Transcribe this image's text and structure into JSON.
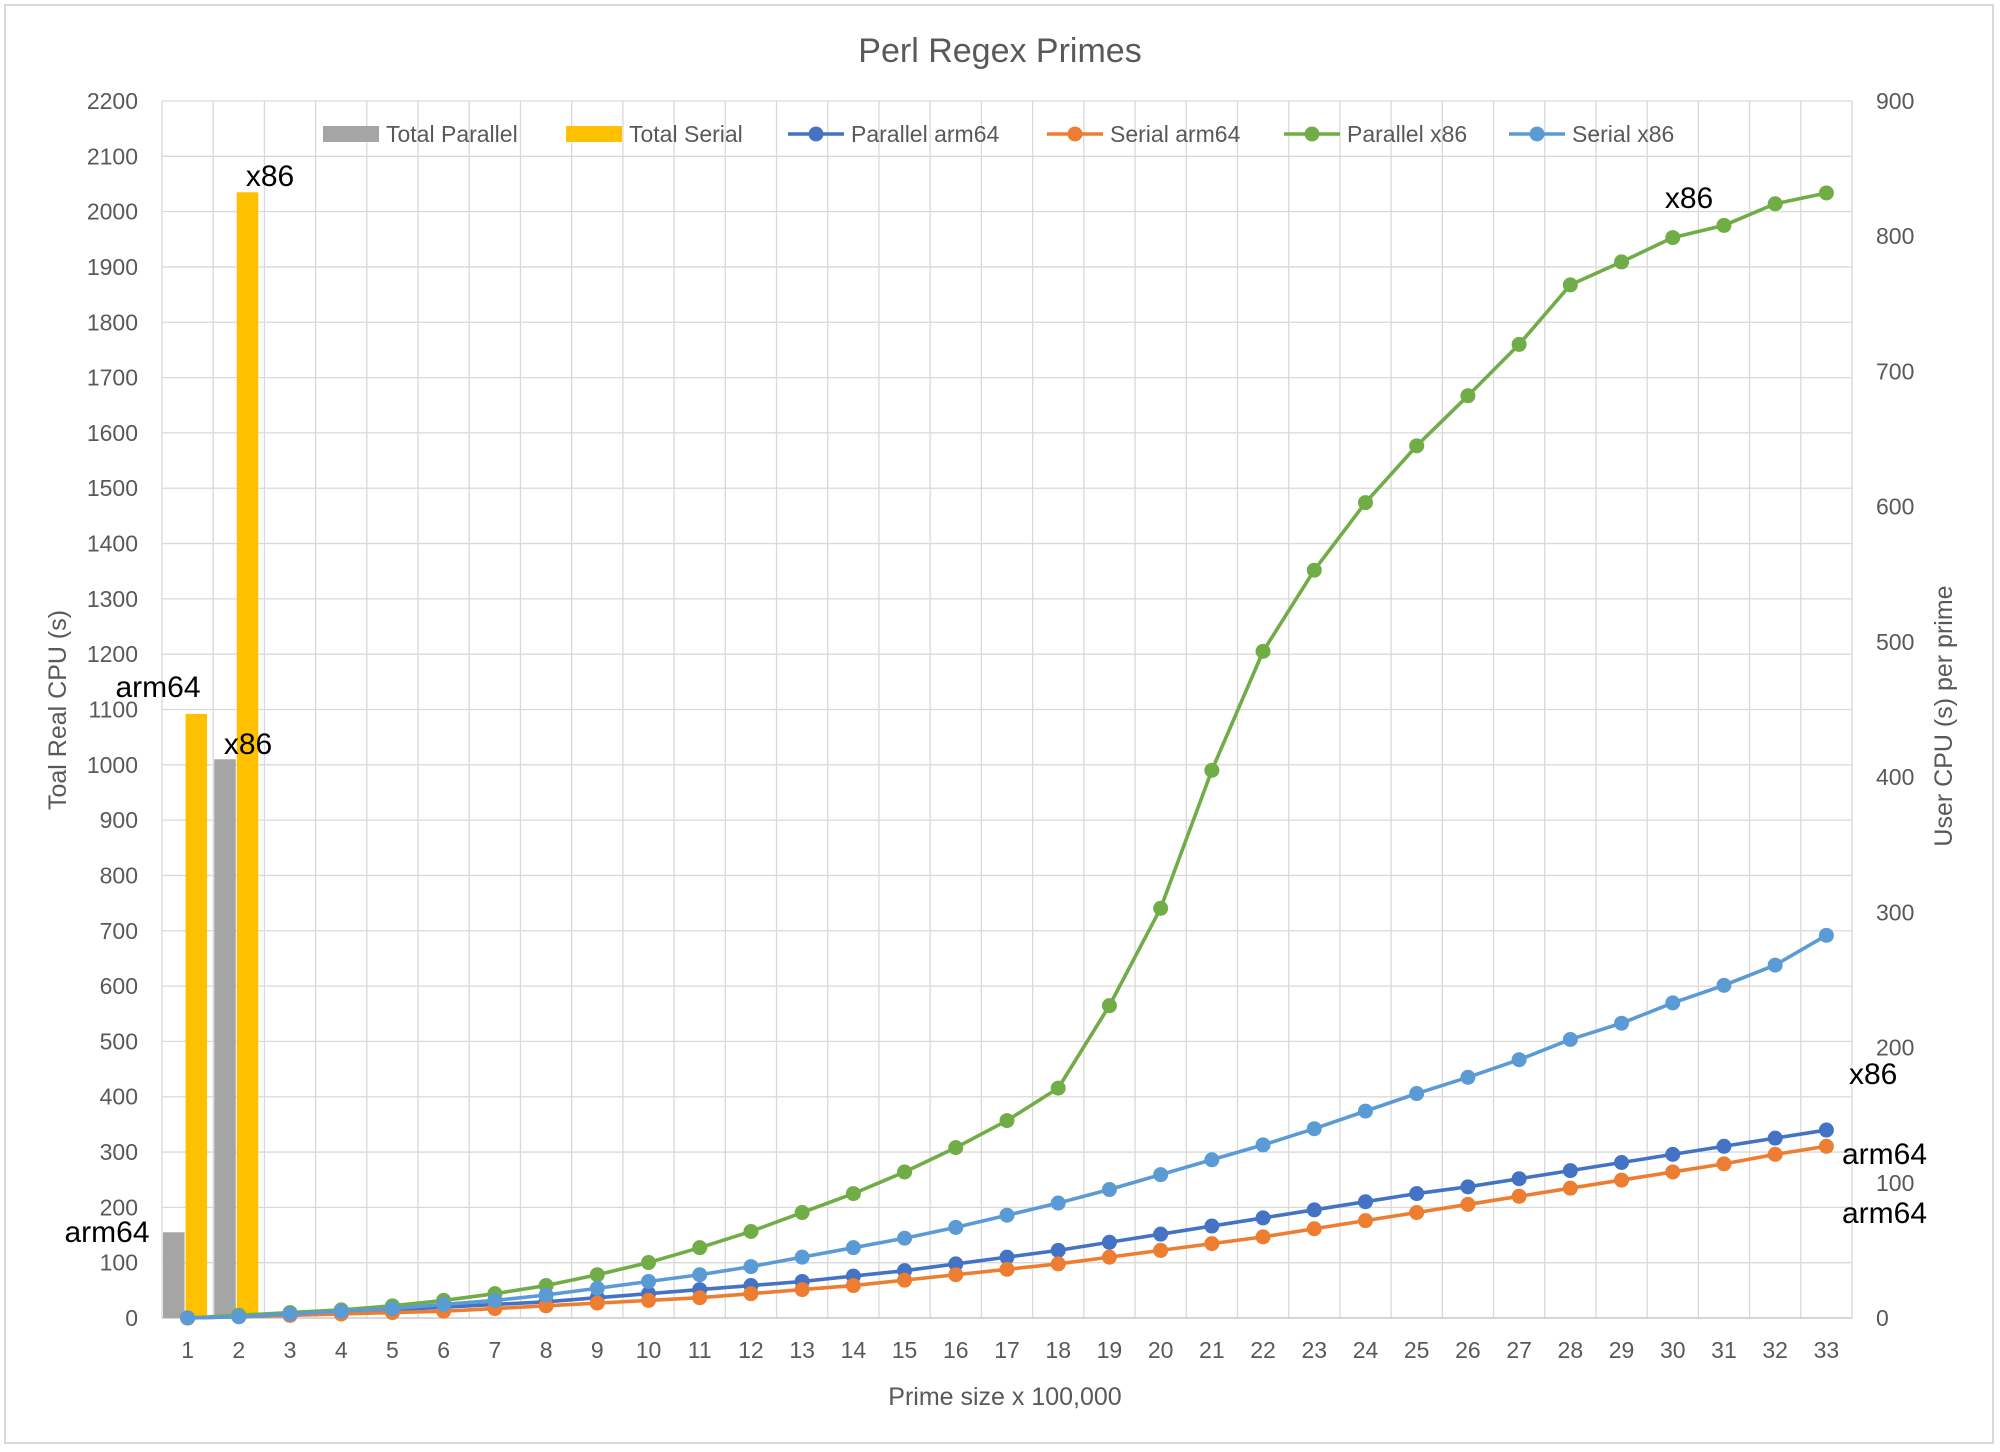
{
  "chart_data": {
    "type": "bar+line",
    "title": "Perl Regex Primes",
    "xlabel": "Prime size x 100,000",
    "ylabel_left": "Toal  Real  CPU  (s)",
    "ylabel_right": "User CPU (s) per prime",
    "categories": [
      "1",
      "2",
      "3",
      "4",
      "5",
      "6",
      "7",
      "8",
      "9",
      "10",
      "11",
      "12",
      "13",
      "14",
      "15",
      "16",
      "17",
      "18",
      "19",
      "20",
      "21",
      "22",
      "23",
      "24",
      "25",
      "26",
      "27",
      "28",
      "29",
      "30",
      "31",
      "32",
      "33"
    ],
    "ylim_left": [
      0,
      2200
    ],
    "yticks_left": [
      0,
      100,
      200,
      300,
      400,
      500,
      600,
      700,
      800,
      900,
      1000,
      1100,
      1200,
      1300,
      1400,
      1500,
      1600,
      1700,
      1800,
      1900,
      2000,
      2100,
      2200
    ],
    "ylim_right": [
      0,
      900
    ],
    "yticks_right": [
      0,
      100,
      200,
      300,
      400,
      500,
      600,
      700,
      800,
      900
    ],
    "grid": true,
    "legend_position": "top",
    "bar_series": [
      {
        "name": "Total Parallel",
        "color": "#a5a5a5",
        "values": [
          155,
          1010
        ]
      },
      {
        "name": "Total Serial",
        "color": "#ffc000",
        "values": [
          1092,
          2035
        ]
      }
    ],
    "line_series": [
      {
        "name": "Parallel arm64",
        "color": "#4472c4",
        "axis": "right",
        "values": [
          0,
          1,
          2,
          4,
          6,
          8,
          10,
          12,
          15,
          18,
          21,
          24,
          27,
          31,
          35,
          40,
          45,
          50,
          56,
          62,
          68,
          74,
          80,
          86,
          92,
          97,
          103,
          109,
          115,
          121,
          127,
          133,
          139
        ]
      },
      {
        "name": "Serial arm64",
        "color": "#ed7d31",
        "axis": "right",
        "values": [
          0,
          1,
          2,
          3,
          4,
          5,
          7,
          9,
          11,
          13,
          15,
          18,
          21,
          24,
          28,
          32,
          36,
          40,
          45,
          50,
          55,
          60,
          66,
          72,
          78,
          84,
          90,
          96,
          102,
          108,
          114,
          121,
          127
        ]
      },
      {
        "name": "Parallel x86",
        "color": "#70ad47",
        "axis": "right",
        "values": [
          0,
          2,
          4,
          6,
          9,
          13,
          18,
          24,
          32,
          41,
          52,
          64,
          78,
          92,
          108,
          126,
          146,
          170,
          231,
          303,
          405,
          493,
          553,
          603,
          645,
          682,
          720,
          764,
          781,
          799,
          808,
          824,
          832
        ]
      },
      {
        "name": "Serial x86",
        "color": "#5b9bd5",
        "axis": "right",
        "values": [
          0,
          1,
          3,
          5,
          7,
          10,
          13,
          17,
          22,
          27,
          32,
          38,
          45,
          52,
          59,
          67,
          76,
          85,
          95,
          106,
          117,
          128,
          140,
          153,
          166,
          178,
          191,
          206,
          218,
          233,
          246,
          261,
          283
        ]
      }
    ],
    "annotations": [
      "arm64",
      "x86",
      "arm64",
      "x86",
      "x86",
      "x86",
      "arm64",
      "arm64"
    ]
  }
}
